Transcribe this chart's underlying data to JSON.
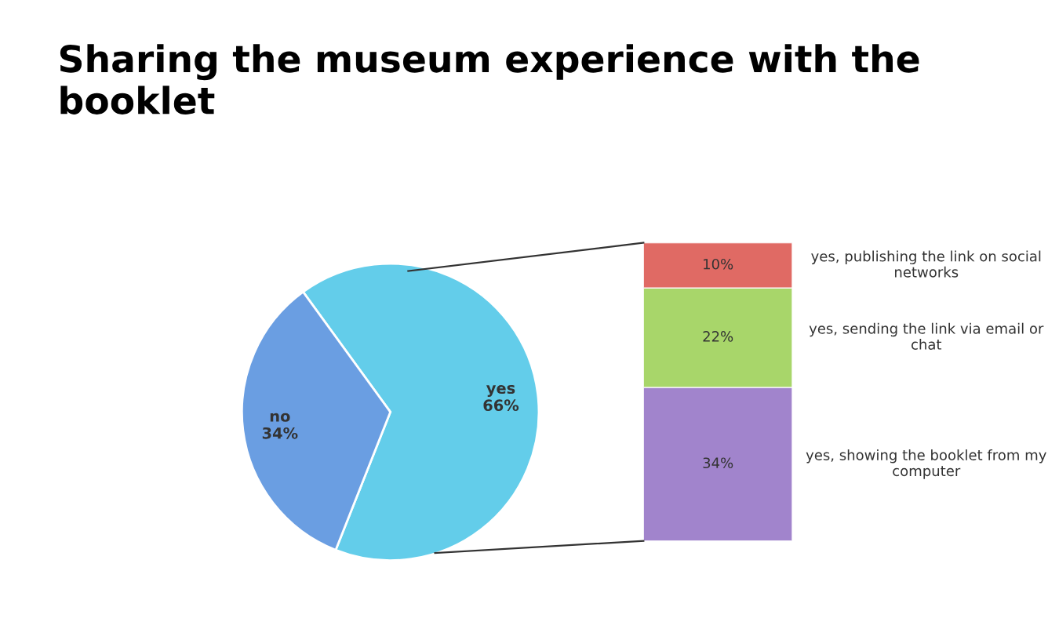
{
  "chart_data": [
    {
      "type": "pie",
      "title": "Sharing the museum experience with the booklet",
      "categories": [
        "yes",
        "no"
      ],
      "values": [
        66,
        34
      ],
      "colors": [
        "#63cdea",
        "#6a9ee2"
      ],
      "value_labels": [
        "66%",
        "34%"
      ]
    },
    {
      "type": "bar",
      "stacked": true,
      "categories": [
        null
      ],
      "tick_labels": false,
      "series": [
        {
          "name": "yes, showing the booklet from my computer",
          "color": "#a184cc",
          "values": [
            34
          ],
          "value_labels": [
            "34%"
          ]
        },
        {
          "name": "yes, sending the link via email or chat",
          "color": "#a8d66a",
          "values": [
            22
          ],
          "value_labels": [
            "22%"
          ]
        },
        {
          "name": "yes, publishing the link on social networks",
          "color": "#e06a64",
          "values": [
            10
          ],
          "value_labels": [
            "10%"
          ]
        }
      ]
    }
  ]
}
